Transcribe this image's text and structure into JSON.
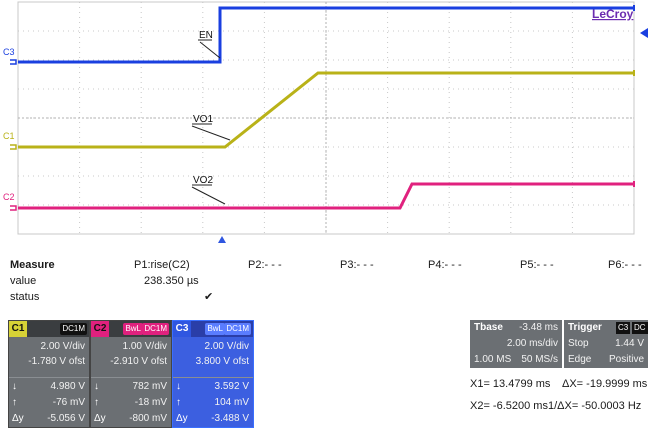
{
  "brand": "LeCroy",
  "channels": {
    "c3": {
      "label": "C3",
      "color": "#1a3fe0"
    },
    "c1": {
      "label": "C1",
      "color": "#b9b218"
    },
    "c2": {
      "label": "C2",
      "color": "#e0217e"
    }
  },
  "annotations": {
    "en": "EN",
    "vo1": "VO1",
    "vo2": "VO2"
  },
  "measure": {
    "title": "Measure",
    "row_value": "value",
    "row_status": "status",
    "params": [
      {
        "label": "P1:rise(C2)",
        "value": "238.350 µs",
        "status": "✔"
      },
      {
        "label": "P2:- - -"
      },
      {
        "label": "P3:- - -"
      },
      {
        "label": "P4:- - -"
      },
      {
        "label": "P5:- - -"
      },
      {
        "label": "P6:- - -"
      }
    ]
  },
  "channel_boxes": [
    {
      "tag": "C1",
      "tag_color": "#d7d236",
      "coupling": "DC1M",
      "vdiv": "2.00 V/div",
      "offset": "-1.780 V ofst",
      "low": "4.980 V",
      "high": "-76 mV",
      "dy": "-5.056 V"
    },
    {
      "tag": "C2",
      "tag_color": "#e0217e",
      "bwl": "BwL",
      "coupling": "DC1M",
      "vdiv": "1.00 V/div",
      "offset": "-2.910 V ofst",
      "low": "782 mV",
      "high": "-18 mV",
      "dy": "-800 mV"
    },
    {
      "tag": "C3",
      "tag_color": "#2f56e0",
      "bwl": "BwL",
      "coupling": "DC1M",
      "vdiv": "2.00 V/div",
      "offset": "3.800 V ofst",
      "low": "3.592 V",
      "high": "104 mV",
      "dy": "-3.488 V"
    }
  ],
  "timebase": {
    "label": "Tbase",
    "delay": "-3.48 ms",
    "tdiv": "2.00 ms/div",
    "samples": "1.00 MS",
    "rate": "50 MS/s"
  },
  "trigger": {
    "label": "Trigger",
    "source": "C3",
    "coupling": "DC",
    "mode": "Stop",
    "level": "1.44 V",
    "type": "Edge",
    "slope": "Positive"
  },
  "cursors": {
    "x1": "X1= 13.4799 ms",
    "dx": "ΔX= -19.9999 ms",
    "x2": "X2= -6.5200 ms",
    "inv_dx": "1/ΔX= -50.0003 Hz"
  }
}
